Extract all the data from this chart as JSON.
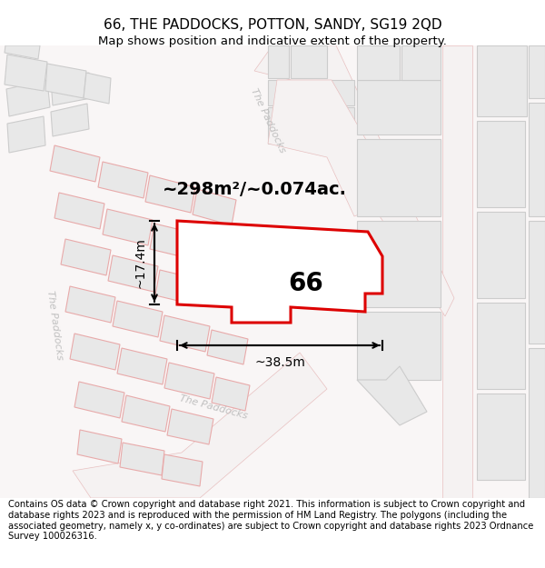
{
  "title": "66, THE PADDOCKS, POTTON, SANDY, SG19 2QD",
  "subtitle": "Map shows position and indicative extent of the property.",
  "footer": "Contains OS data © Crown copyright and database right 2021. This information is subject to Crown copyright and database rights 2023 and is reproduced with the permission of HM Land Registry. The polygons (including the associated geometry, namely x, y co-ordinates) are subject to Crown copyright and database rights 2023 Ordnance Survey 100026316.",
  "area_text": "~298m²/~0.074ac.",
  "width_label": "~38.5m",
  "height_label": "~17.4m",
  "plot_number": "66",
  "bg_color": "#ffffff",
  "map_bg": "#ffffff",
  "plot_color": "#dd0000",
  "plot_fill": "#ffffff",
  "building_fill": "#e8e8e8",
  "building_edge": "#e8aaaa",
  "road_fill": "#f5f5f5",
  "road_edge": "#e8c0c0",
  "gray_edge": "#cccccc",
  "gray_fill": "#e8e8e8",
  "street_label_color": "#c0c0c0",
  "title_fontsize": 11,
  "subtitle_fontsize": 9.5,
  "footer_fontsize": 7.2
}
